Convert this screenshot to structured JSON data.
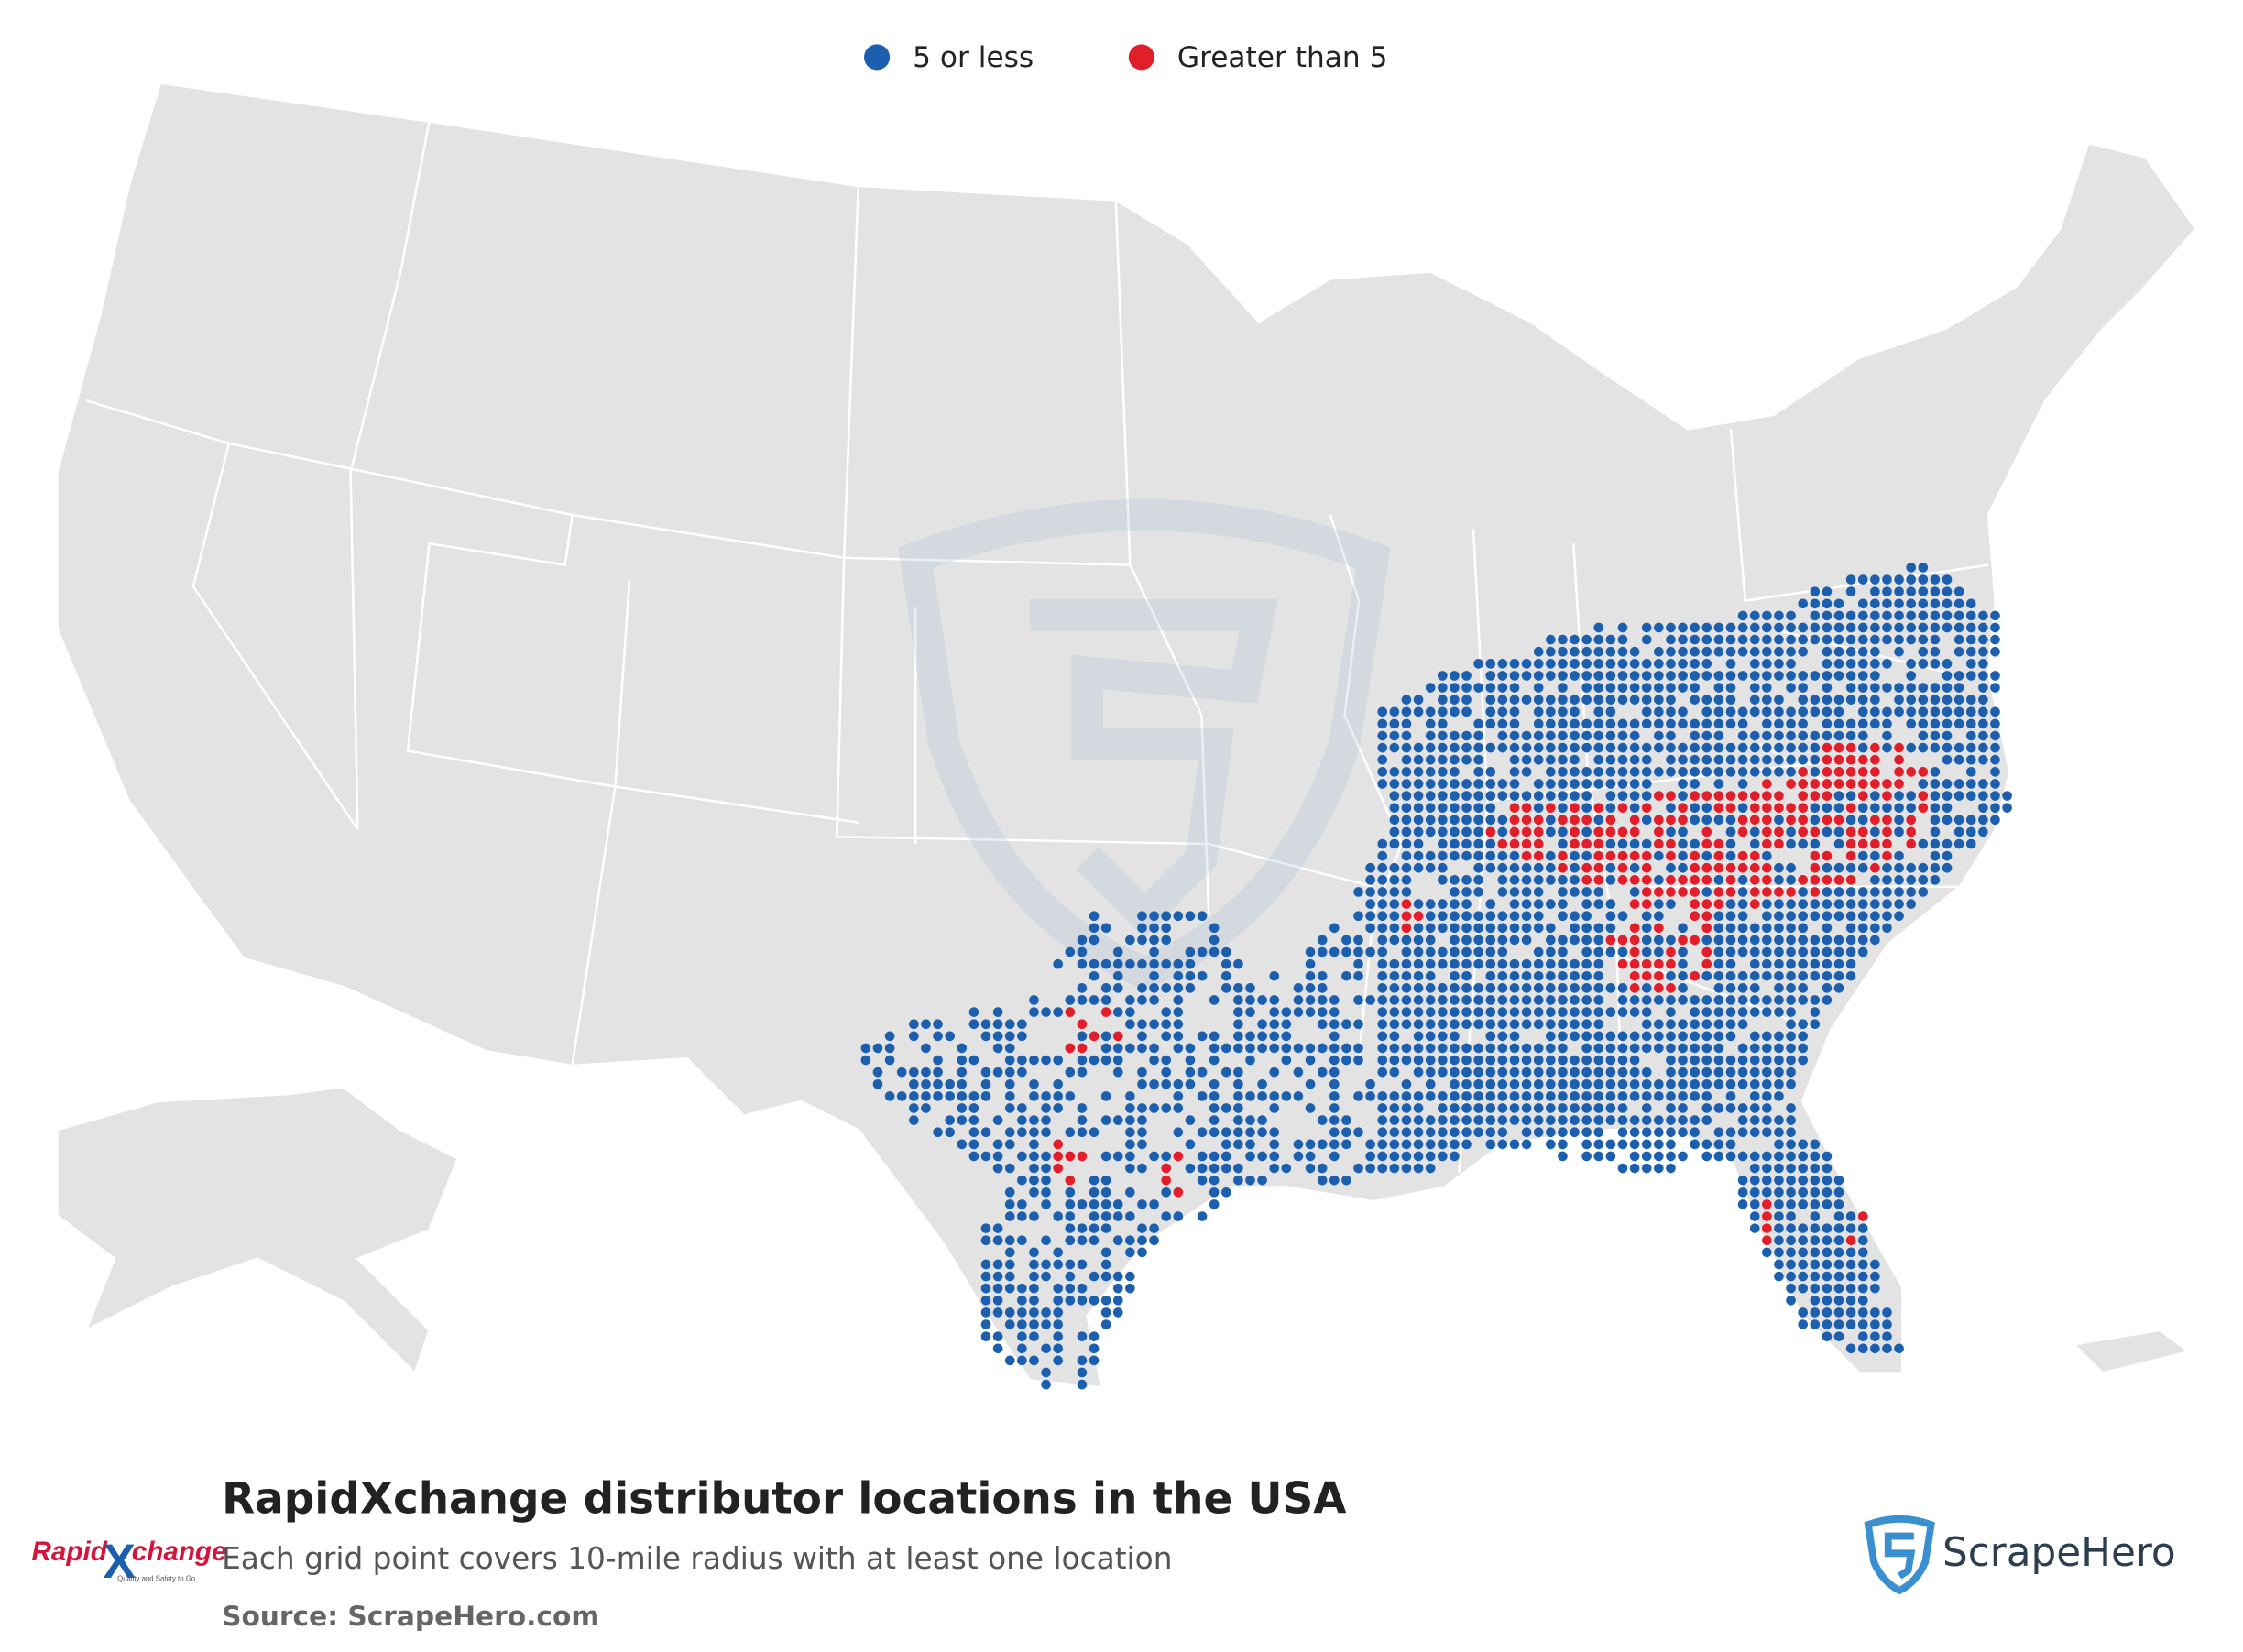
{
  "legend": [
    {
      "label": "5 or less",
      "color": "#1c5fae"
    },
    {
      "label": "Greater than 5",
      "color": "#e31e2b"
    }
  ],
  "footer": {
    "title": "RapidXchange distributor locations in the USA",
    "subtitle": "Each grid point covers 10-mile radius with at least one location",
    "source": "Source: ScrapeHero.com"
  },
  "logos": {
    "rapidxchange": {
      "left": "Rapid",
      "right": "change",
      "tagline": "Quality and Safety to Go"
    },
    "scrapehero": {
      "name": "ScrapeHero"
    }
  }
}
